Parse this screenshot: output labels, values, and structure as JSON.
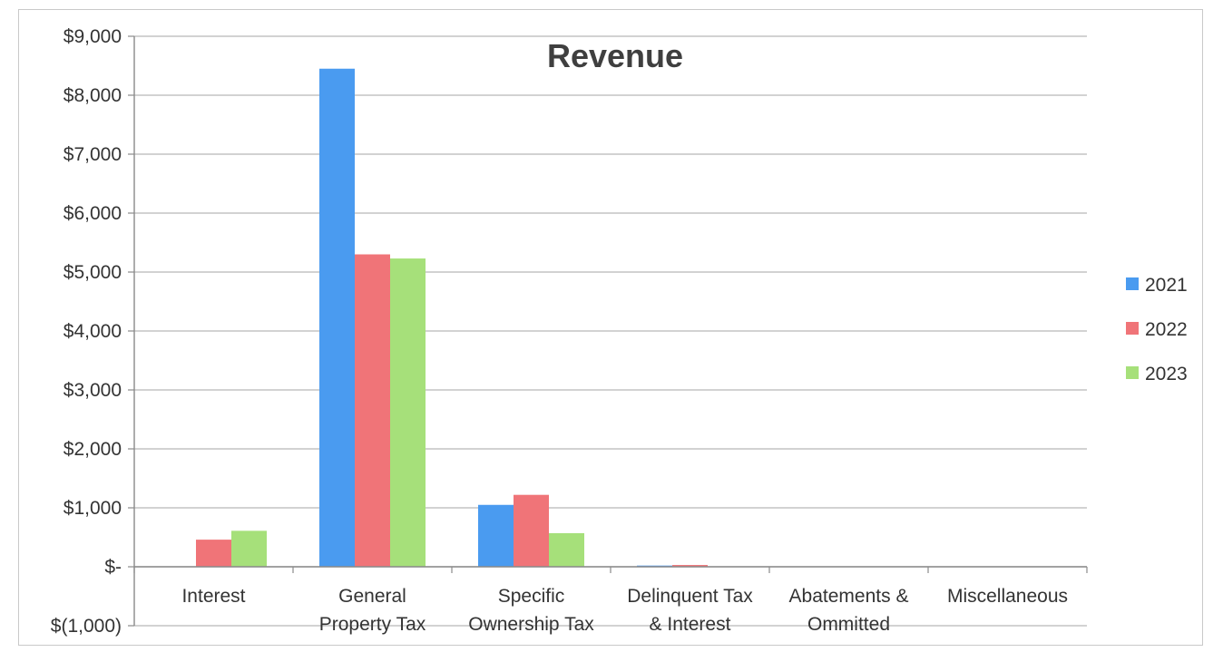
{
  "chart_data": {
    "type": "bar",
    "title": "Revenue",
    "xlabel": "",
    "ylabel": "",
    "ylim": [
      -1000,
      9000
    ],
    "y_ticks": [
      {
        "value": 9000,
        "label": "$9,000"
      },
      {
        "value": 8000,
        "label": "$8,000"
      },
      {
        "value": 7000,
        "label": "$7,000"
      },
      {
        "value": 6000,
        "label": "$6,000"
      },
      {
        "value": 5000,
        "label": "$5,000"
      },
      {
        "value": 4000,
        "label": "$4,000"
      },
      {
        "value": 3000,
        "label": "$3,000"
      },
      {
        "value": 2000,
        "label": "$2,000"
      },
      {
        "value": 1000,
        "label": "$1,000"
      },
      {
        "value": 0,
        "label": "$-"
      },
      {
        "value": -1000,
        "label": "$(1,000)"
      }
    ],
    "categories": [
      [
        "Interest"
      ],
      [
        "General",
        "Property Tax"
      ],
      [
        "Specific",
        "Ownership Tax"
      ],
      [
        "Delinquent Tax",
        "& Interest"
      ],
      [
        "Abatements &",
        "Ommitted"
      ],
      [
        "Miscellaneous"
      ]
    ],
    "series": [
      {
        "name": "2021",
        "color": "#4a9bf0",
        "values": [
          0,
          8450,
          1050,
          20,
          0,
          0
        ]
      },
      {
        "name": "2022",
        "color": "#f07478",
        "values": [
          460,
          5300,
          1220,
          30,
          0,
          0
        ]
      },
      {
        "name": "2023",
        "color": "#a6e07a",
        "values": [
          610,
          5230,
          570,
          0,
          0,
          0
        ]
      }
    ],
    "grid": true,
    "legend": "right"
  }
}
